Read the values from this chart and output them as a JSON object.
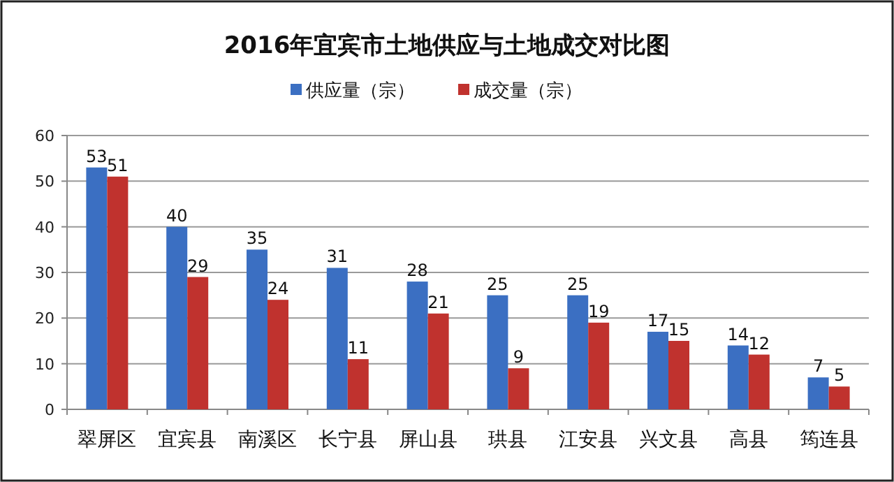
{
  "chart_data": {
    "type": "bar",
    "title": "2016年宜宾市土地供应与土地成交对比图",
    "categories": [
      "翠屏区",
      "宜宾县",
      "南溪区",
      "长宁县",
      "屏山县",
      "珙县",
      "江安县",
      "兴文县",
      "高县",
      "筠连县"
    ],
    "series": [
      {
        "name": "供应量（宗）",
        "color": "#3b6fc2",
        "values": [
          53,
          40,
          35,
          31,
          28,
          25,
          25,
          17,
          14,
          7
        ]
      },
      {
        "name": "成交量（宗）",
        "color": "#c0322e",
        "values": [
          51,
          29,
          24,
          11,
          21,
          9,
          19,
          15,
          12,
          5
        ]
      }
    ],
    "ylim": [
      0,
      60
    ],
    "yticks": [
      0,
      10,
      20,
      30,
      40,
      50,
      60
    ],
    "grid": "y",
    "legend": "top",
    "data_labels": true
  }
}
